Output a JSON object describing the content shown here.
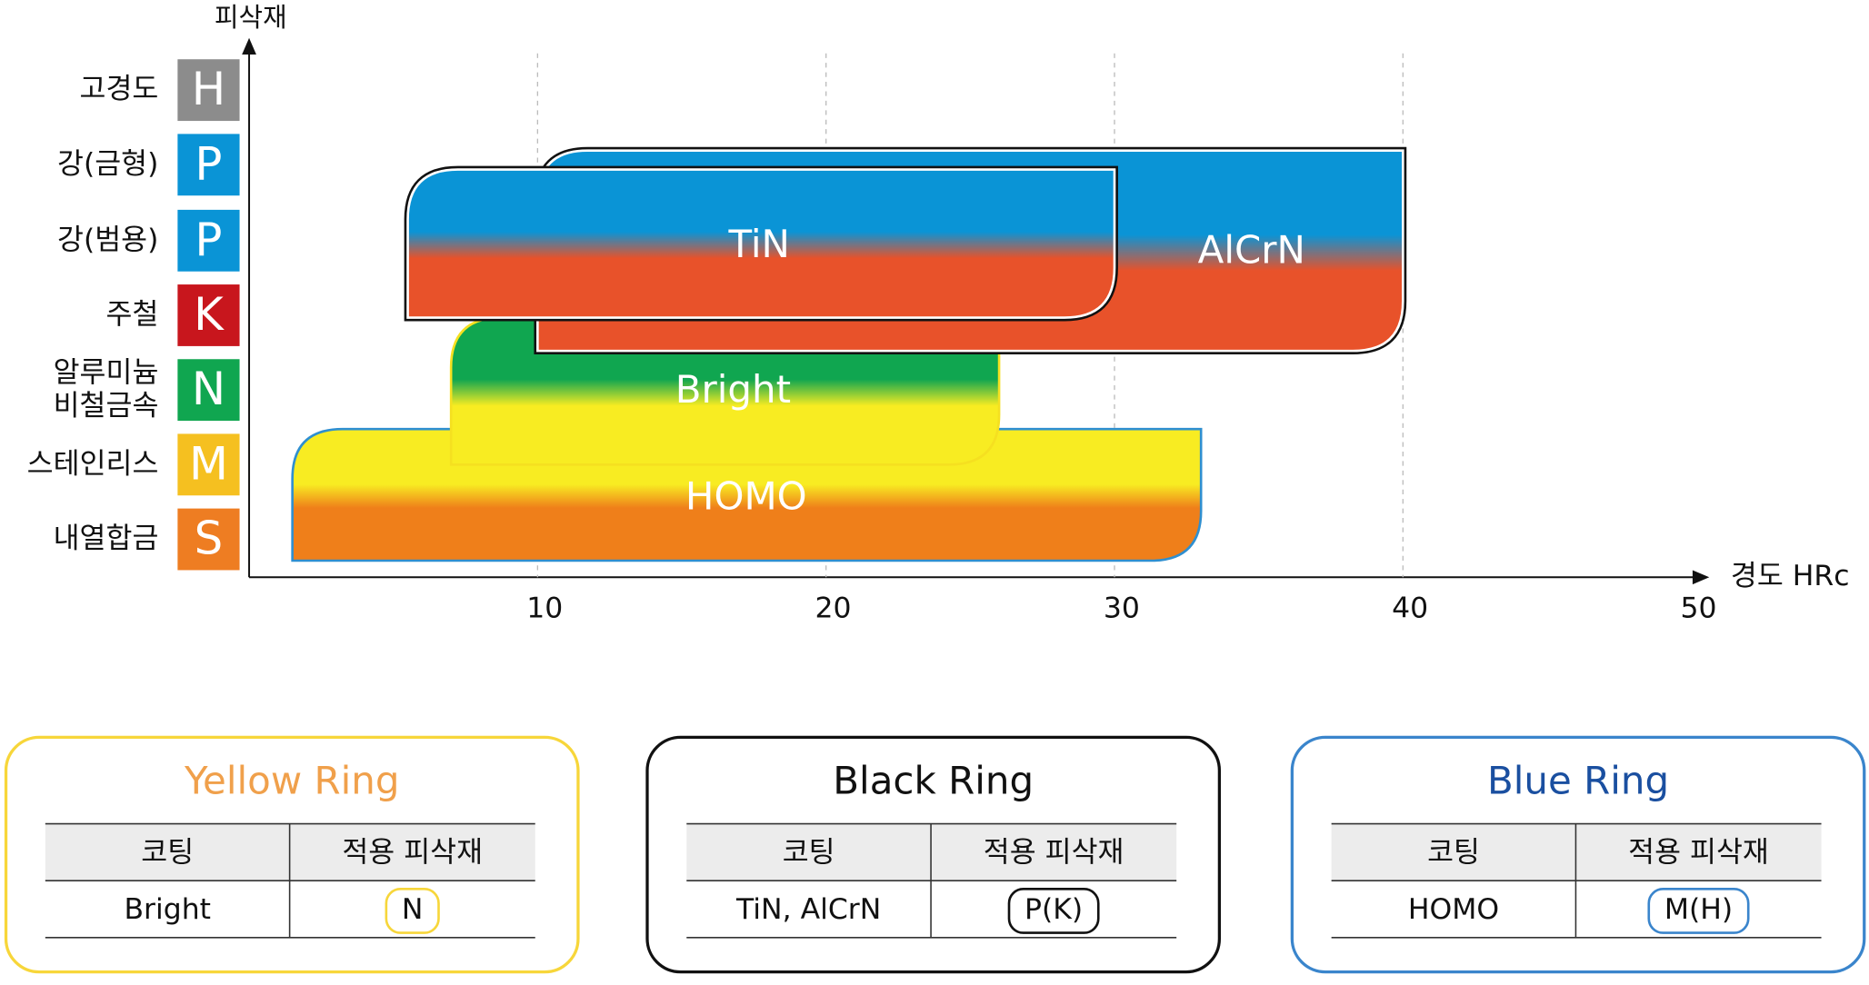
{
  "chart_data": {
    "type": "range-bar",
    "y_axis_title": "피삭재",
    "x_axis_title": "경도 HRc",
    "xlim": [
      0,
      50
    ],
    "xticks": [
      10,
      20,
      30,
      40,
      50
    ],
    "grid": true,
    "rows": [
      {
        "label": [
          "고경도"
        ],
        "code": "H",
        "color": "#8c8c8c"
      },
      {
        "label": [
          "강(금형)"
        ],
        "code": "P",
        "color": "#0a94d6"
      },
      {
        "label": [
          "강(범용)"
        ],
        "code": "P",
        "color": "#0a94d6"
      },
      {
        "label": [
          "주철"
        ],
        "code": "K",
        "color": "#c8161d"
      },
      {
        "label": [
          "알루미늄",
          "비철금속"
        ],
        "code": "N",
        "color": "#10a650"
      },
      {
        "label": [
          "스테인리스"
        ],
        "code": "M",
        "color": "#f5c020"
      },
      {
        "label": [
          "내열합금"
        ],
        "code": "S",
        "color": "#ee7d22"
      }
    ],
    "series": [
      {
        "name": "HOMO",
        "start": 1.5,
        "end": 33,
        "colors": [
          "#f8ec22",
          "#ef7f1a"
        ],
        "border": "#2f8fd0"
      },
      {
        "name": "Bright",
        "start": 7,
        "end": 26,
        "colors": [
          "#10a650",
          "#f8ec22"
        ],
        "border": "#f5e020"
      },
      {
        "name": "AlCrN",
        "start": 10,
        "end": 40,
        "colors": [
          "#0a94d6",
          "#e8522a"
        ],
        "border": "#111111"
      },
      {
        "name": "TiN",
        "start": 5.5,
        "end": 30,
        "colors": [
          "#0a94d6",
          "#e8522a"
        ],
        "border": "#111111"
      }
    ]
  },
  "rings": [
    {
      "title": "Yellow Ring",
      "title_color": "#f0a04b",
      "border_color": "#f7d63a",
      "header": [
        "코팅",
        "적용 피삭재"
      ],
      "row": [
        "Bright",
        "N"
      ]
    },
    {
      "title": "Black Ring",
      "title_color": "#111111",
      "border_color": "#111111",
      "header": [
        "코팅",
        "적용 피삭재"
      ],
      "row": [
        "TiN, AlCrN",
        "P(K)"
      ]
    },
    {
      "title": "Blue Ring",
      "title_color": "#1a4fa0",
      "border_color": "#3a85cc",
      "header": [
        "코팅",
        "적용 피삭재"
      ],
      "row": [
        "HOMO",
        "M(H)"
      ]
    }
  ]
}
